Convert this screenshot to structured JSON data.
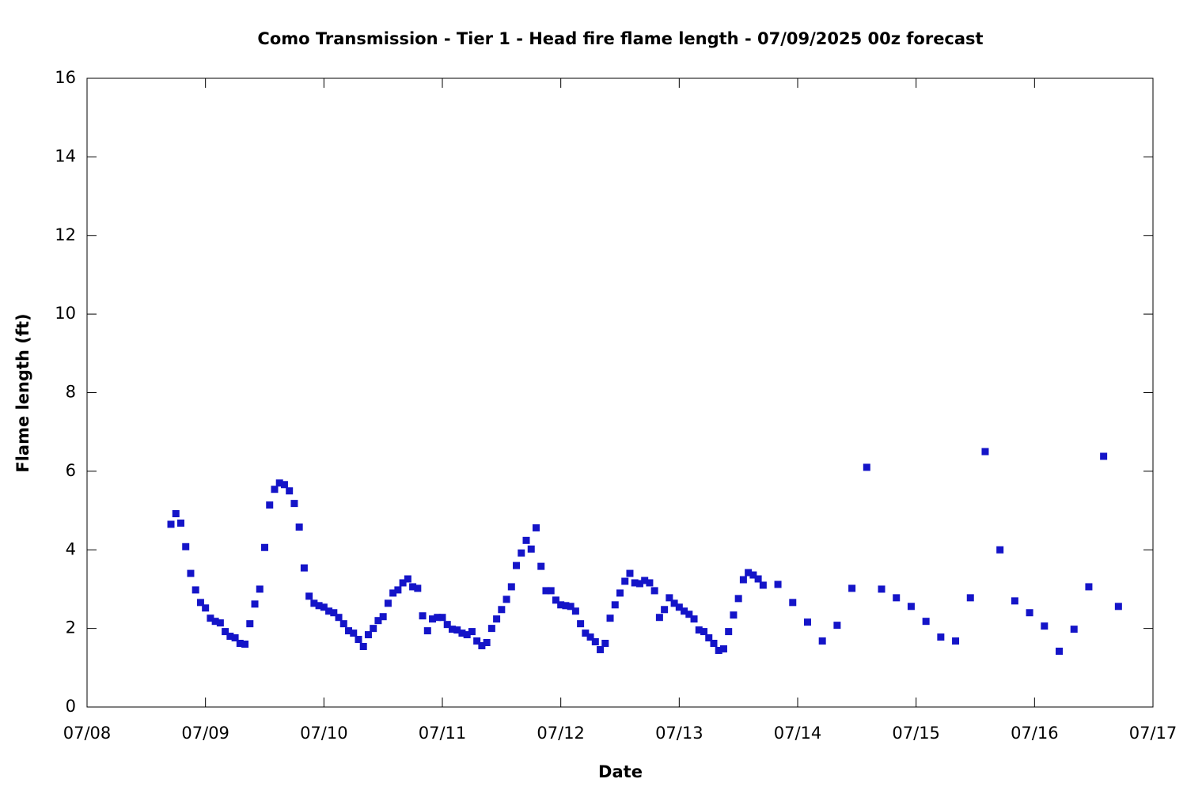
{
  "chart_data": {
    "type": "scatter",
    "title": "Como Transmission - Tier 1 - Head fire flame length - 07/09/2025 00z forecast",
    "xlabel": "Date",
    "ylabel": "Flame length (ft)",
    "color": "#1414c8",
    "grid": false,
    "xlim": [
      0,
      216
    ],
    "xticks": [
      {
        "value": 0,
        "label": "07/08"
      },
      {
        "value": 24,
        "label": "07/09"
      },
      {
        "value": 48,
        "label": "07/10"
      },
      {
        "value": 72,
        "label": "07/11"
      },
      {
        "value": 96,
        "label": "07/12"
      },
      {
        "value": 120,
        "label": "07/13"
      },
      {
        "value": 144,
        "label": "07/14"
      },
      {
        "value": 168,
        "label": "07/15"
      },
      {
        "value": 192,
        "label": "07/16"
      },
      {
        "value": 216,
        "label": "07/17"
      }
    ],
    "ylim": [
      0,
      16
    ],
    "yticks": [
      0,
      2,
      4,
      6,
      8,
      10,
      12,
      14,
      16
    ],
    "x": [
      17,
      18,
      19,
      20,
      21,
      22,
      23,
      24,
      25,
      26,
      27,
      28,
      29,
      30,
      31,
      32,
      33,
      34,
      35,
      36,
      37,
      38,
      39,
      40,
      41,
      42,
      43,
      44,
      45,
      46,
      47,
      48,
      49,
      50,
      51,
      52,
      53,
      54,
      55,
      56,
      57,
      58,
      59,
      60,
      61,
      62,
      63,
      64,
      65,
      66,
      67,
      68,
      69,
      70,
      71,
      72,
      73,
      74,
      75,
      76,
      77,
      78,
      79,
      80,
      81,
      82,
      83,
      84,
      85,
      86,
      87,
      88,
      89,
      90,
      91,
      92,
      93,
      94,
      95,
      96,
      97,
      98,
      99,
      100,
      101,
      102,
      103,
      104,
      105,
      106,
      107,
      108,
      109,
      110,
      111,
      112,
      113,
      114,
      115,
      116,
      117,
      118,
      119,
      120,
      121,
      122,
      123,
      124,
      125,
      126,
      127,
      128,
      129,
      130,
      131,
      132,
      133,
      134,
      135,
      136,
      137,
      140,
      143,
      146,
      149,
      152,
      155,
      158,
      161,
      164,
      167,
      170,
      173,
      176,
      179,
      182,
      185,
      188,
      191,
      194,
      197,
      200,
      203,
      206,
      209
    ],
    "values": [
      4.65,
      4.92,
      4.68,
      4.08,
      3.4,
      2.98,
      2.66,
      2.52,
      2.26,
      2.18,
      2.14,
      1.92,
      1.8,
      1.76,
      1.62,
      1.6,
      2.12,
      2.62,
      3.0,
      4.06,
      5.14,
      5.54,
      5.7,
      5.66,
      5.5,
      5.18,
      4.58,
      3.54,
      2.82,
      2.64,
      2.58,
      2.54,
      2.44,
      2.4,
      2.28,
      2.12,
      1.94,
      1.88,
      1.72,
      1.54,
      1.84,
      2.0,
      2.2,
      2.3,
      2.64,
      2.9,
      2.98,
      3.16,
      3.26,
      3.06,
      3.02,
      2.32,
      1.94,
      2.24,
      2.28,
      2.28,
      2.1,
      1.98,
      1.96,
      1.88,
      1.84,
      1.92,
      1.68,
      1.56,
      1.64,
      2.0,
      2.24,
      2.48,
      2.74,
      3.06,
      3.6,
      3.92,
      4.24,
      4.02,
      4.56,
      3.58,
      2.96,
      2.96,
      2.72,
      2.6,
      2.58,
      2.56,
      2.44,
      2.12,
      1.88,
      1.78,
      1.66,
      1.46,
      1.62,
      2.26,
      2.6,
      2.9,
      3.2,
      3.4,
      3.16,
      3.14,
      3.22,
      3.16,
      2.96,
      2.28,
      2.48,
      2.78,
      2.64,
      2.54,
      2.44,
      2.36,
      2.24,
      1.96,
      1.92,
      1.76,
      1.62,
      1.44,
      1.48,
      1.92,
      2.34,
      2.76,
      3.24,
      3.42,
      3.36,
      3.26,
      3.1,
      3.12,
      2.66,
      2.16,
      1.68,
      2.08,
      3.02,
      6.1,
      3.0,
      2.78,
      2.56,
      2.18,
      1.78,
      1.68,
      2.78,
      6.5,
      4.0,
      2.7,
      2.4,
      2.06,
      1.42,
      1.98,
      3.06,
      6.38,
      2.56
    ]
  }
}
